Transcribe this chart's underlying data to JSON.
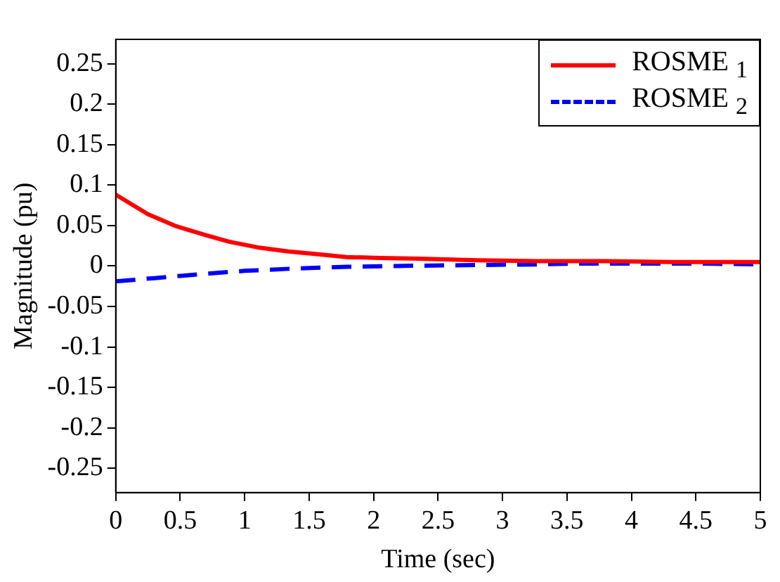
{
  "chart_data": {
    "type": "line",
    "xlabel": "Time (sec)",
    "ylabel": "Magnitude (pu)",
    "xlim": [
      0,
      5
    ],
    "xticks": [
      0,
      0.5,
      1,
      1.5,
      2,
      2.5,
      3,
      3.5,
      4,
      4.5,
      5
    ],
    "ylim": [
      -0.28,
      0.28
    ],
    "yticks": [
      -0.25,
      -0.2,
      -0.15,
      -0.1,
      -0.05,
      0,
      0.05,
      0.1,
      0.15,
      0.2,
      0.25
    ],
    "grid": false,
    "legend": "top right",
    "marker": "none",
    "series": [
      {
        "name": "ROSME $_{1}$",
        "color": "#ff0000",
        "line_style": "solid",
        "x": [
          0,
          0.25,
          0.47,
          0.7,
          0.88,
          1.1,
          1.34,
          1.6,
          1.79,
          2.05,
          2.35,
          2.8,
          3.29,
          3.8,
          4.3,
          5
        ],
        "values": [
          0.088,
          0.064,
          0.049,
          0.038,
          0.03,
          0.023,
          0.018,
          0.014,
          0.011,
          0.01,
          0.009,
          0.007,
          0.006,
          0.006,
          0.005,
          0.005
        ]
      },
      {
        "name": "ROSME $_{2}$",
        "color": "#0000ff",
        "line_style": "dashed",
        "x": [
          0,
          0.3,
          0.66,
          1.0,
          1.41,
          1.8,
          2.17,
          2.7,
          3.29,
          3.6,
          4.0,
          4.5,
          5
        ],
        "values": [
          -0.019,
          -0.015,
          -0.01,
          -0.006,
          -0.003,
          -0.001,
          0,
          0.001,
          0.002,
          0.003,
          0.003,
          0.003,
          0.002
        ]
      }
    ]
  }
}
